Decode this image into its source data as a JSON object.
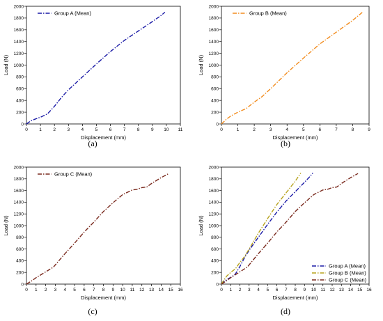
{
  "chart_data": [
    {
      "type": "line",
      "panel_label": "(a)",
      "xlabel": "Displacement (mm)",
      "ylabel": "Load (N)",
      "xlim": [
        0,
        11
      ],
      "ylim": [
        0,
        2000
      ],
      "xticks": [
        "0",
        "1",
        "2",
        "3",
        "4",
        "5",
        "6",
        "7",
        "8",
        "9",
        "10",
        "11"
      ],
      "yticks": [
        "0",
        "200",
        "400",
        "600",
        "800",
        "1000",
        "1200",
        "1400",
        "1600",
        "1800",
        "2000"
      ],
      "legend_position": "top-left",
      "series": [
        {
          "name": "Group A (Mean)",
          "color": "#1a1aa6",
          "dash": "dashdot",
          "x": [
            0,
            0.3,
            0.6,
            1.0,
            1.5,
            2.0,
            2.5,
            3.0,
            4.0,
            5.0,
            6.0,
            7.0,
            8.0,
            9.0,
            9.6,
            9.75,
            9.9
          ],
          "y": [
            0,
            50,
            80,
            115,
            170,
            300,
            450,
            580,
            800,
            1020,
            1230,
            1420,
            1580,
            1740,
            1840,
            1870,
            1900
          ]
        }
      ]
    },
    {
      "type": "line",
      "panel_label": "(b)",
      "xlabel": "Displacement (mm)",
      "ylabel": "Load (N)",
      "xlim": [
        0,
        9
      ],
      "ylim": [
        0,
        2000
      ],
      "xticks": [
        "0",
        "1",
        "2",
        "3",
        "4",
        "5",
        "6",
        "7",
        "8",
        "9"
      ],
      "yticks": [
        "0",
        "200",
        "400",
        "600",
        "800",
        "1000",
        "1200",
        "1400",
        "1600",
        "1800",
        "2000"
      ],
      "legend_position": "top-left",
      "series": [
        {
          "name": "Group B (Mean)",
          "color": "#f28c1e",
          "dash": "dashdot",
          "x": [
            0,
            0.3,
            0.6,
            1.0,
            1.5,
            2.0,
            2.5,
            3.0,
            4.0,
            5.0,
            6.0,
            7.0,
            8.0,
            8.6
          ],
          "y": [
            0,
            80,
            140,
            200,
            260,
            370,
            470,
            600,
            870,
            1120,
            1360,
            1560,
            1760,
            1900
          ]
        }
      ]
    },
    {
      "type": "line",
      "panel_label": "(c)",
      "xlabel": "Displacement (mm)",
      "ylabel": "Load (N)",
      "xlim": [
        0,
        16
      ],
      "ylim": [
        0,
        2000
      ],
      "xticks": [
        "0",
        "1",
        "2",
        "3",
        "4",
        "5",
        "6",
        "7",
        "8",
        "9",
        "10",
        "11",
        "12",
        "13",
        "14",
        "15",
        "16"
      ],
      "yticks": [
        "0",
        "200",
        "400",
        "600",
        "800",
        "1000",
        "1200",
        "1400",
        "1600",
        "1800",
        "2000"
      ],
      "legend_position": "top-left",
      "series": [
        {
          "name": "Group C (Mean)",
          "color": "#7a2a1e",
          "dash": "dashdot",
          "x": [
            0,
            0.5,
            1.0,
            2.0,
            2.8,
            4.0,
            5.0,
            6.0,
            7.0,
            8.0,
            9.0,
            10.0,
            11.0,
            11.5,
            12.0,
            12.5,
            13.0,
            14.0,
            14.8
          ],
          "y": [
            0,
            50,
            110,
            210,
            290,
            520,
            700,
            890,
            1060,
            1240,
            1390,
            1530,
            1610,
            1620,
            1650,
            1660,
            1720,
            1820,
            1890
          ]
        }
      ]
    },
    {
      "type": "line",
      "panel_label": "(d)",
      "xlabel": "Displacement (mm)",
      "ylabel": "Load (N)",
      "xlim": [
        0,
        16
      ],
      "ylim": [
        0,
        2000
      ],
      "xticks": [
        "0",
        "1",
        "2",
        "3",
        "4",
        "5",
        "6",
        "7",
        "8",
        "9",
        "10",
        "11",
        "12",
        "13",
        "14",
        "15",
        "16"
      ],
      "yticks": [
        "0",
        "200",
        "400",
        "600",
        "800",
        "1000",
        "1200",
        "1400",
        "1600",
        "1800",
        "2000"
      ],
      "legend_position": "bottom-right",
      "series": [
        {
          "name": "Group A (Mean)",
          "color": "#1a1aa6",
          "dash": "dashdot",
          "x": [
            0,
            0.3,
            0.6,
            1.0,
            1.5,
            2.0,
            2.5,
            3.0,
            4.0,
            5.0,
            6.0,
            7.0,
            8.0,
            9.0,
            9.6,
            9.75,
            9.9
          ],
          "y": [
            0,
            50,
            80,
            115,
            170,
            300,
            450,
            580,
            800,
            1020,
            1230,
            1420,
            1580,
            1740,
            1840,
            1870,
            1900
          ]
        },
        {
          "name": "Group B (Mean)",
          "color": "#b7a21c",
          "dash": "dashdot",
          "x": [
            0,
            0.3,
            0.6,
            1.0,
            1.5,
            2.0,
            2.5,
            3.0,
            4.0,
            5.0,
            6.0,
            7.0,
            8.0,
            8.6
          ],
          "y": [
            0,
            80,
            140,
            200,
            260,
            370,
            470,
            600,
            870,
            1120,
            1360,
            1560,
            1760,
            1900
          ]
        },
        {
          "name": "Group C (Mean)",
          "color": "#7a2a1e",
          "dash": "dashdot",
          "x": [
            0,
            0.5,
            1.0,
            2.0,
            2.8,
            4.0,
            5.0,
            6.0,
            7.0,
            8.0,
            9.0,
            10.0,
            11.0,
            11.5,
            12.0,
            12.5,
            13.0,
            14.0,
            14.8
          ],
          "y": [
            0,
            50,
            110,
            210,
            290,
            520,
            700,
            890,
            1060,
            1240,
            1390,
            1530,
            1610,
            1620,
            1650,
            1660,
            1720,
            1820,
            1890
          ]
        }
      ]
    }
  ]
}
